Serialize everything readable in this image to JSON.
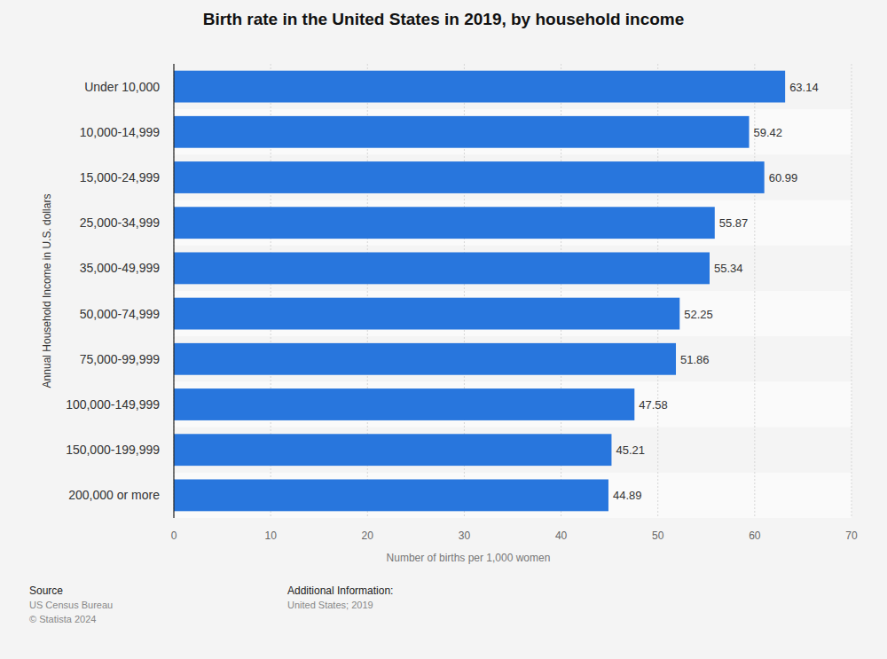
{
  "chart_data": {
    "type": "bar",
    "orientation": "horizontal",
    "title": "Birth rate in the United States in 2019, by household income",
    "categories": [
      "Under 10,000",
      "10,000-14,999",
      "15,000-24,999",
      "25,000-34,999",
      "35,000-49,999",
      "50,000-74,999",
      "75,000-99,999",
      "100,000-149,999",
      "150,000-199,999",
      "200,000 or more"
    ],
    "values": [
      63.14,
      59.42,
      60.99,
      55.87,
      55.34,
      52.25,
      51.86,
      47.58,
      45.21,
      44.89
    ],
    "color": "#2876dd",
    "xlim": [
      0,
      70
    ],
    "xticks": [
      0,
      10,
      20,
      30,
      40,
      50,
      60,
      70
    ],
    "x_label": "Number of births per 1,000 women",
    "y_label": "Annual Household Income in U.S. dollars",
    "grid": true,
    "data_labels": true,
    "source": {
      "heading": "Source",
      "lines": [
        "US Census Bureau",
        "© Statista 2024"
      ]
    },
    "additional_information": {
      "heading": "Additional Information:",
      "lines": [
        "United States; 2019"
      ]
    }
  }
}
